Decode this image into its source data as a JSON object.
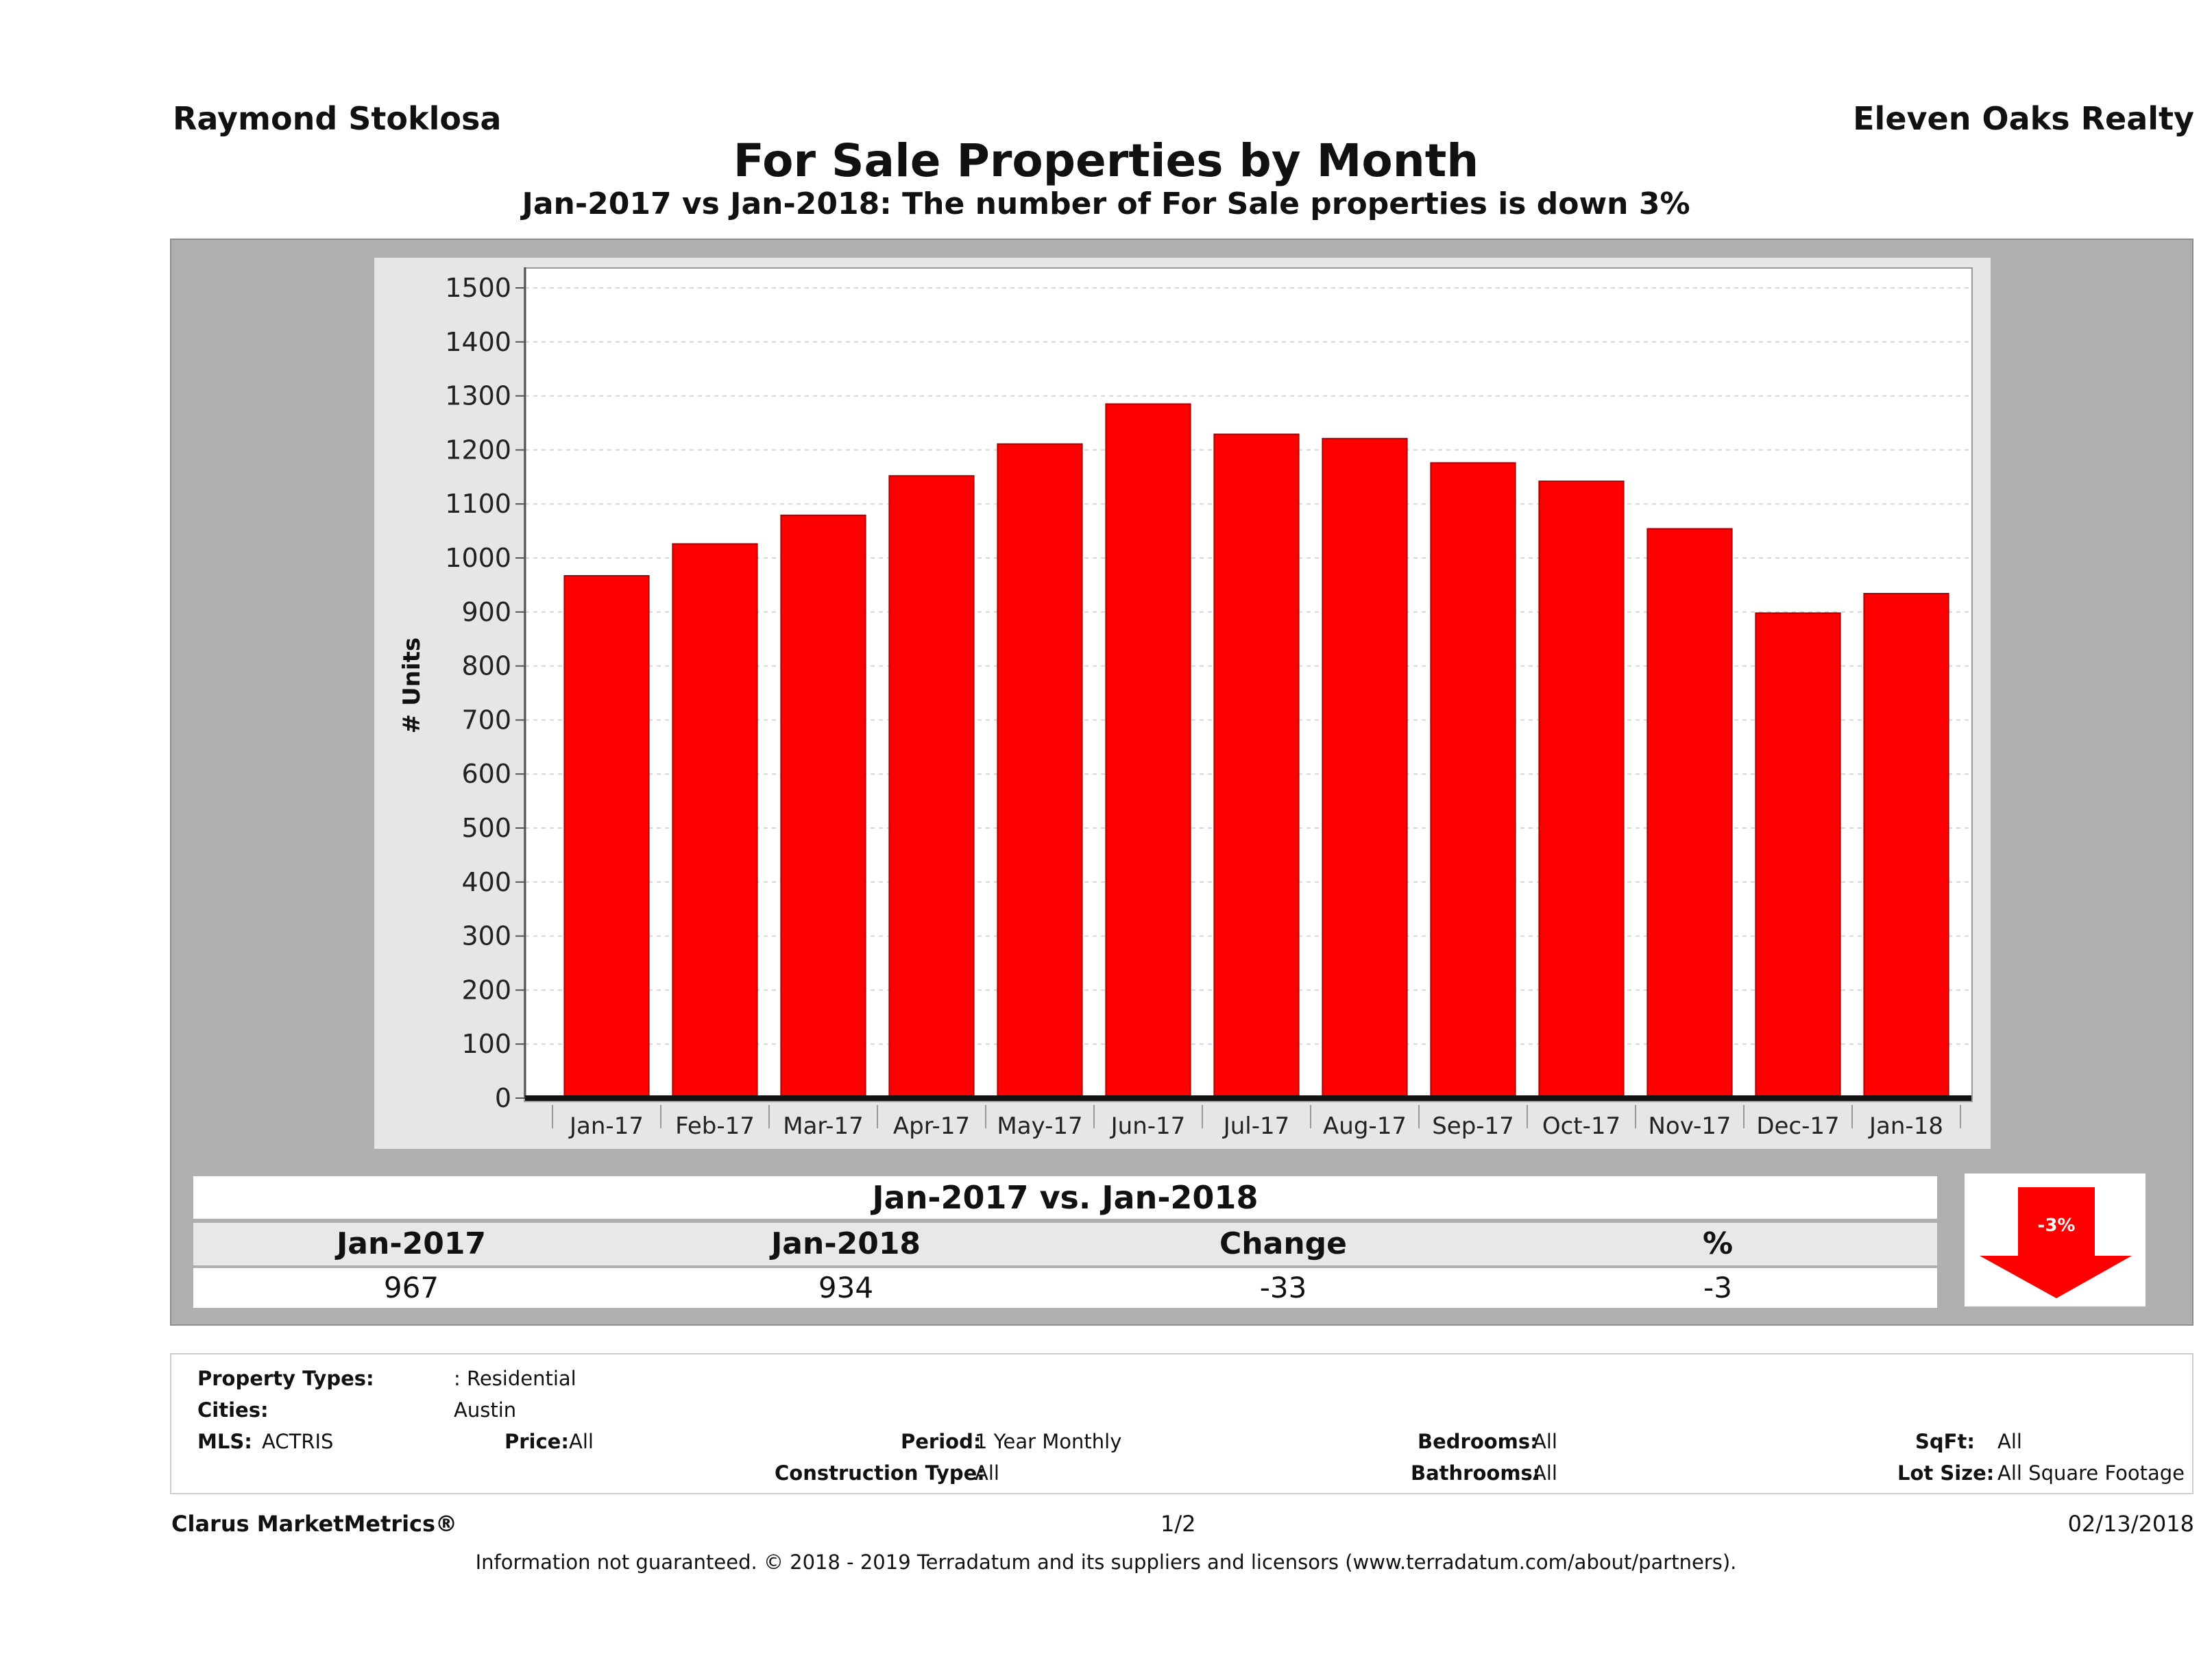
{
  "header": {
    "agent_name": "Raymond Stoklosa",
    "brokerage": "Eleven Oaks Realty",
    "title": "For Sale Properties by Month",
    "subtitle": "Jan-2017 vs Jan-2018: The number of For Sale  properties is down 3%"
  },
  "chart_data": {
    "type": "bar",
    "categories": [
      "Jan-17",
      "Feb-17",
      "Mar-17",
      "Apr-17",
      "May-17",
      "Jun-17",
      "Jul-17",
      "Aug-17",
      "Sep-17",
      "Oct-17",
      "Nov-17",
      "Dec-17",
      "Jan-18"
    ],
    "values": [
      967,
      1026,
      1079,
      1152,
      1211,
      1285,
      1229,
      1221,
      1176,
      1142,
      1054,
      898,
      934
    ],
    "ylabel": "# Units",
    "ylim": [
      0,
      1500
    ],
    "yticks": [
      0,
      100,
      200,
      300,
      400,
      500,
      600,
      700,
      800,
      900,
      1000,
      1100,
      1200,
      1300,
      1400,
      1500
    ],
    "bar_color": "#ff0000",
    "grid": true
  },
  "comparison": {
    "title": "Jan-2017 vs. Jan-2018",
    "headers": [
      "Jan-2017",
      "Jan-2018",
      "Change",
      "%"
    ],
    "values": [
      "967",
      "934",
      "-33",
      "-3"
    ],
    "badge": "-3%",
    "badge_direction": "down",
    "badge_color": "#ff0000"
  },
  "filters": {
    "property_types_label": "Property Types:",
    "property_types_value": ": Residential",
    "cities_label": "Cities:",
    "cities_value": "Austin",
    "mls_label": "MLS:",
    "mls_value": "ACTRIS",
    "price_label": "Price:",
    "price_value": "All",
    "period_label": "Period:",
    "period_value": "1 Year Monthly",
    "construction_label": "Construction Type:",
    "construction_value": "All",
    "bedrooms_label": "Bedrooms:",
    "bedrooms_value": "All",
    "bathrooms_label": "Bathrooms:",
    "bathrooms_value": "All",
    "sqft_label": "SqFt:",
    "sqft_value": "All",
    "lotsize_label": "Lot Size:",
    "lotsize_value": "All Square Footage"
  },
  "footer": {
    "product": "Clarus MarketMetrics®",
    "page": "1/2",
    "date": "02/13/2018",
    "disclaimer": "Information not guaranteed. © 2018 - 2019 Terradatum and its suppliers and licensors (www.terradatum.com/about/partners)."
  }
}
